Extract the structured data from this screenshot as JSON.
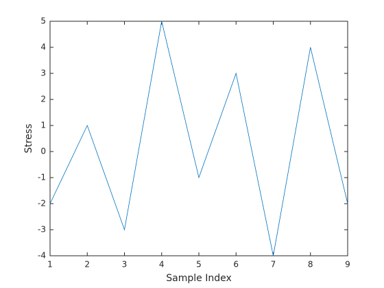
{
  "chart_data": {
    "type": "line",
    "xlabel": "Sample Index",
    "ylabel": "Stress",
    "x": [
      1,
      2,
      3,
      4,
      5,
      6,
      7,
      8,
      9
    ],
    "series": [
      {
        "name": "Stress",
        "color": "#0072bd",
        "values": [
          -2,
          1,
          -3,
          5,
          -1,
          3,
          -4,
          4,
          -2
        ]
      }
    ],
    "xlim": [
      1,
      9
    ],
    "xticks": [
      1,
      2,
      3,
      4,
      5,
      6,
      7,
      8,
      9
    ],
    "ylim": [
      -4,
      5
    ],
    "yticks": [
      -4,
      -3,
      -2,
      -1,
      0,
      1,
      2,
      3,
      4,
      5
    ],
    "grid": false
  }
}
